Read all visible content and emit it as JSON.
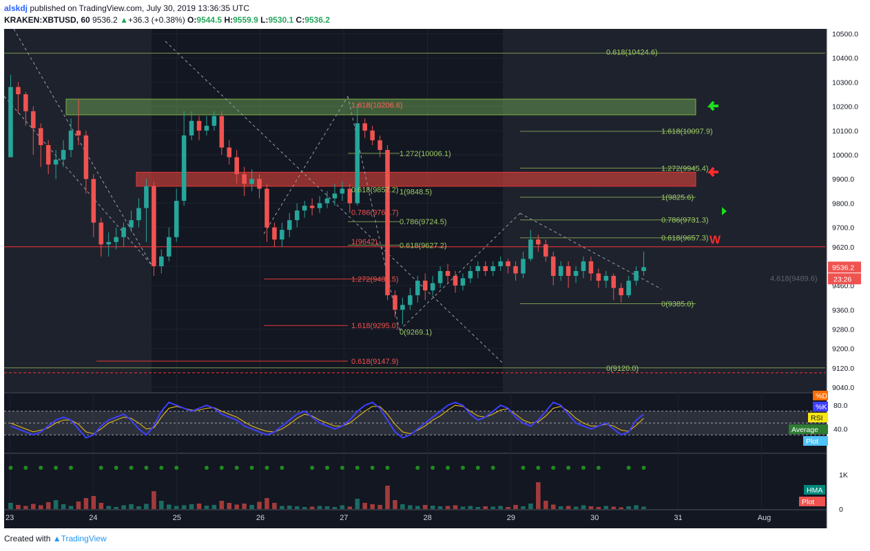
{
  "header": {
    "user": "alskdj",
    "published": "published on TradingView.com, July 30, 2019 13:36:35 UTC",
    "symbol": "KRAKEN:XBTUSD, 60",
    "last": "9536.2",
    "change": "+36.3 (+0.38%)",
    "o_label": "O:",
    "o": "9544.5",
    "h_label": "H:",
    "h": "9559.9",
    "l_label": "L:",
    "l": "9530.1",
    "c_label": "C:",
    "c": "9536.2"
  },
  "footer": {
    "created": "Created with",
    "brand": "TradingView"
  },
  "colors": {
    "up": "#26a69a",
    "down": "#ef5350",
    "bg": "#131722",
    "fib": "#9ccc65",
    "red": "#ff3333",
    "rsiK": "#3f3fff",
    "rsiD": "#f5c518"
  },
  "chart_data": {
    "type": "candlestick",
    "price_axis": [
      "10500.0",
      "10400.0",
      "10300.0",
      "10200.0",
      "10100.0",
      "10000.0",
      "9900.0",
      "9800.0",
      "9700.0",
      "9620.0",
      "9540.0",
      "9460.0",
      "9360.0",
      "9280.0",
      "9200.0",
      "9120.0",
      "9040.0"
    ],
    "ylim": [
      9020,
      10520
    ],
    "x_ticks": [
      "23",
      "24",
      "25",
      "26",
      "27",
      "28",
      "29",
      "30",
      "31",
      "Aug"
    ],
    "last_price_label": "9536.2",
    "countdown_label": "23:26",
    "candles": [
      [
        9990,
        10280,
        10330,
        10010
      ],
      [
        10280,
        10250,
        10300,
        10170
      ],
      [
        10250,
        10180,
        10260,
        10120
      ],
      [
        10180,
        10110,
        10200,
        10000
      ],
      [
        10110,
        10040,
        10130,
        9950
      ],
      [
        10040,
        9960,
        10060,
        9920
      ],
      [
        9960,
        9980,
        10020,
        9900
      ],
      [
        9980,
        10020,
        10060,
        9950
      ],
      [
        10020,
        10100,
        10150,
        9990
      ],
      [
        10100,
        10080,
        10230,
        10040
      ],
      [
        10080,
        9900,
        10100,
        9840
      ],
      [
        9900,
        9720,
        9920,
        9660
      ],
      [
        9720,
        9630,
        9740,
        9580
      ],
      [
        9630,
        9640,
        9680,
        9580
      ],
      [
        9640,
        9660,
        9700,
        9610
      ],
      [
        9660,
        9700,
        9720,
        9620
      ],
      [
        9700,
        9730,
        9770,
        9680
      ],
      [
        9730,
        9780,
        9820,
        9700
      ],
      [
        9780,
        9870,
        9900,
        9640
      ],
      [
        9870,
        9540,
        9890,
        9500
      ],
      [
        9540,
        9580,
        9610,
        9510
      ],
      [
        9580,
        9660,
        9700,
        9560
      ],
      [
        9660,
        9810,
        9860,
        9640
      ],
      [
        9810,
        10080,
        10180,
        9790
      ],
      [
        10080,
        10140,
        10180,
        10060
      ],
      [
        10140,
        10100,
        10160,
        10060
      ],
      [
        10100,
        10120,
        10160,
        10080
      ],
      [
        10120,
        10160,
        10180,
        10100
      ],
      [
        10160,
        10030,
        10180,
        10000
      ],
      [
        10030,
        9990,
        10060,
        9960
      ],
      [
        9990,
        9920,
        10020,
        9880
      ],
      [
        9920,
        9880,
        9950,
        9830
      ],
      [
        9880,
        9900,
        9940,
        9850
      ],
      [
        9900,
        9860,
        9920,
        9820
      ],
      [
        9860,
        9700,
        9880,
        9640
      ],
      [
        9700,
        9650,
        9720,
        9620
      ],
      [
        9650,
        9690,
        9720,
        9620
      ],
      [
        9690,
        9730,
        9760,
        9660
      ],
      [
        9730,
        9770,
        9800,
        9700
      ],
      [
        9770,
        9790,
        9810,
        9740
      ],
      [
        9790,
        9780,
        9820,
        9750
      ],
      [
        9780,
        9800,
        9830,
        9760
      ],
      [
        9800,
        9820,
        9850,
        9780
      ],
      [
        9820,
        9840,
        9880,
        9790
      ],
      [
        9840,
        9860,
        9890,
        9810
      ],
      [
        9860,
        9800,
        9880,
        9760
      ],
      [
        9800,
        10130,
        10210,
        9790
      ],
      [
        10130,
        10100,
        10150,
        10070
      ],
      [
        10100,
        10060,
        10120,
        10040
      ],
      [
        10060,
        10020,
        10080,
        9990
      ],
      [
        10020,
        9420,
        10040,
        9400
      ],
      [
        9420,
        9360,
        9440,
        9330
      ],
      [
        9360,
        9380,
        9410,
        9300
      ],
      [
        9380,
        9420,
        9450,
        9360
      ],
      [
        9420,
        9480,
        9500,
        9390
      ],
      [
        9480,
        9440,
        9510,
        9400
      ],
      [
        9440,
        9470,
        9500,
        9420
      ],
      [
        9470,
        9520,
        9540,
        9450
      ],
      [
        9520,
        9500,
        9550,
        9470
      ],
      [
        9500,
        9460,
        9520,
        9430
      ],
      [
        9460,
        9490,
        9510,
        9440
      ],
      [
        9490,
        9520,
        9540,
        9470
      ],
      [
        9520,
        9540,
        9560,
        9490
      ],
      [
        9540,
        9520,
        9560,
        9500
      ],
      [
        9520,
        9540,
        9560,
        9500
      ],
      [
        9540,
        9560,
        9580,
        9520
      ],
      [
        9560,
        9540,
        9570,
        9510
      ],
      [
        9540,
        9510,
        9560,
        9480
      ],
      [
        9510,
        9570,
        9600,
        9490
      ],
      [
        9570,
        9650,
        9690,
        9560
      ],
      [
        9650,
        9630,
        9670,
        9600
      ],
      [
        9630,
        9580,
        9650,
        9560
      ],
      [
        9580,
        9500,
        9600,
        9460
      ],
      [
        9500,
        9540,
        9560,
        9480
      ],
      [
        9540,
        9500,
        9560,
        9450
      ],
      [
        9500,
        9520,
        9540,
        9470
      ],
      [
        9520,
        9560,
        9580,
        9490
      ],
      [
        9560,
        9510,
        9580,
        9480
      ],
      [
        9510,
        9480,
        9530,
        9450
      ],
      [
        9480,
        9500,
        9520,
        9450
      ],
      [
        9500,
        9450,
        9510,
        9400
      ],
      [
        9450,
        9420,
        9470,
        9390
      ],
      [
        9420,
        9480,
        9500,
        9410
      ],
      [
        9480,
        9520,
        9540,
        9460
      ],
      [
        9520,
        9536,
        9600,
        9500
      ]
    ],
    "fib_labels": [
      {
        "text": "0.618(10424.6)",
        "price": 10424.6,
        "color": "fib"
      },
      {
        "text": "1.618(10206.6)",
        "price": 10206.6,
        "color": "fib"
      },
      {
        "text": "1.618(10097.9)",
        "price": 10097.9,
        "color": "fib"
      },
      {
        "text": "1.272(10006.1)",
        "price": 10006.1,
        "color": "fib"
      },
      {
        "text": "1.272(9945.4)",
        "price": 9945.4,
        "color": "fib"
      },
      {
        "text": "1(9848.5)",
        "price": 9848.5,
        "color": "fib"
      },
      {
        "text": "0.618(9857.2)",
        "price": 9857.2,
        "color": "fib"
      },
      {
        "text": "1(9825.6)",
        "price": 9825.6,
        "color": "fib"
      },
      {
        "text": "0.786(9762.7)",
        "price": 9762.7,
        "color": "red"
      },
      {
        "text": "0.786(9731.3)",
        "price": 9731.3,
        "color": "fib"
      },
      {
        "text": "0.786(9724.5)",
        "price": 9724.5,
        "color": "fib"
      },
      {
        "text": "0.618(9657.3)",
        "price": 9657.3,
        "color": "fib"
      },
      {
        "text": "1(9642)",
        "price": 9642,
        "color": "red"
      },
      {
        "text": "0.618(9627.2)",
        "price": 9627.2,
        "color": "fib"
      },
      {
        "text": "1.272(9487.5)",
        "price": 9487.5,
        "color": "red"
      },
      {
        "text": "4.618(9489.6)",
        "price": 9489.6,
        "color": "grey"
      },
      {
        "text": "0(9385.0)",
        "price": 9385.0,
        "color": "fib"
      },
      {
        "text": "1.618(9295.0)",
        "price": 9295.0,
        "color": "red"
      },
      {
        "text": "0(9269.1)",
        "price": 9269.1,
        "color": "fib"
      },
      {
        "text": "0.618(9147.9)",
        "price": 9147.9,
        "color": "red"
      },
      {
        "text": "0(9120.0)",
        "price": 9120.0,
        "color": "fib"
      },
      {
        "text": "1.618(10206.6)",
        "price": 10206.6,
        "color": "red"
      }
    ],
    "zones": [
      {
        "name": "green-zone",
        "from": 10165,
        "to": 10230
      },
      {
        "name": "red-zone",
        "from": 9870,
        "to": 9928
      }
    ],
    "annotation_w": "W",
    "rsi": {
      "axis": [
        "80.0",
        "40.0"
      ],
      "legend": [
        "%D",
        "%K",
        "RSI",
        "Average",
        "Plot"
      ],
      "k": [
        45,
        40,
        35,
        30,
        35,
        45,
        55,
        60,
        55,
        40,
        25,
        30,
        45,
        55,
        60,
        65,
        55,
        40,
        30,
        45,
        70,
        85,
        80,
        75,
        70,
        75,
        80,
        75,
        65,
        60,
        55,
        45,
        40,
        35,
        30,
        35,
        45,
        55,
        65,
        70,
        60,
        50,
        45,
        40,
        45,
        55,
        70,
        80,
        85,
        75,
        55,
        35,
        25,
        30,
        40,
        50,
        60,
        70,
        80,
        85,
        80,
        65,
        55,
        60,
        70,
        80,
        75,
        60,
        50,
        45,
        55,
        70,
        85,
        80,
        65,
        50,
        45,
        40,
        45,
        50,
        40,
        30,
        35,
        55,
        65
      ],
      "d": [
        50,
        45,
        40,
        35,
        38,
        42,
        50,
        55,
        55,
        48,
        35,
        32,
        40,
        50,
        55,
        60,
        58,
        50,
        40,
        42,
        60,
        75,
        78,
        75,
        72,
        72,
        75,
        76,
        70,
        65,
        60,
        52,
        45,
        40,
        36,
        35,
        40,
        48,
        58,
        65,
        62,
        55,
        50,
        45,
        45,
        50,
        60,
        70,
        78,
        78,
        65,
        48,
        35,
        32,
        38,
        45,
        55,
        62,
        72,
        80,
        78,
        70,
        62,
        60,
        65,
        72,
        74,
        65,
        55,
        50,
        52,
        62,
        75,
        78,
        70,
        58,
        50,
        45,
        45,
        48,
        45,
        38,
        36,
        46,
        58
      ]
    },
    "volume": {
      "axis": [
        "1K",
        "0"
      ],
      "legend": [
        "HMA",
        "Plot"
      ],
      "values": [
        180,
        120,
        90,
        150,
        110,
        200,
        260,
        140,
        90,
        220,
        320,
        380,
        180,
        90,
        60,
        110,
        140,
        80,
        150,
        520,
        240,
        130,
        90,
        110,
        140,
        160,
        100,
        120,
        240,
        180,
        130,
        160,
        120,
        210,
        320,
        180,
        90,
        100,
        80,
        60,
        70,
        90,
        80,
        60,
        110,
        70,
        300,
        180,
        140,
        120,
        680,
        260,
        140,
        110,
        90,
        120,
        100,
        80,
        90,
        110,
        70,
        90,
        60,
        80,
        70,
        90,
        60,
        120,
        80,
        160,
        780,
        240,
        130,
        80,
        90,
        70,
        110,
        80,
        60,
        90,
        70,
        50,
        80,
        110,
        70
      ]
    }
  }
}
